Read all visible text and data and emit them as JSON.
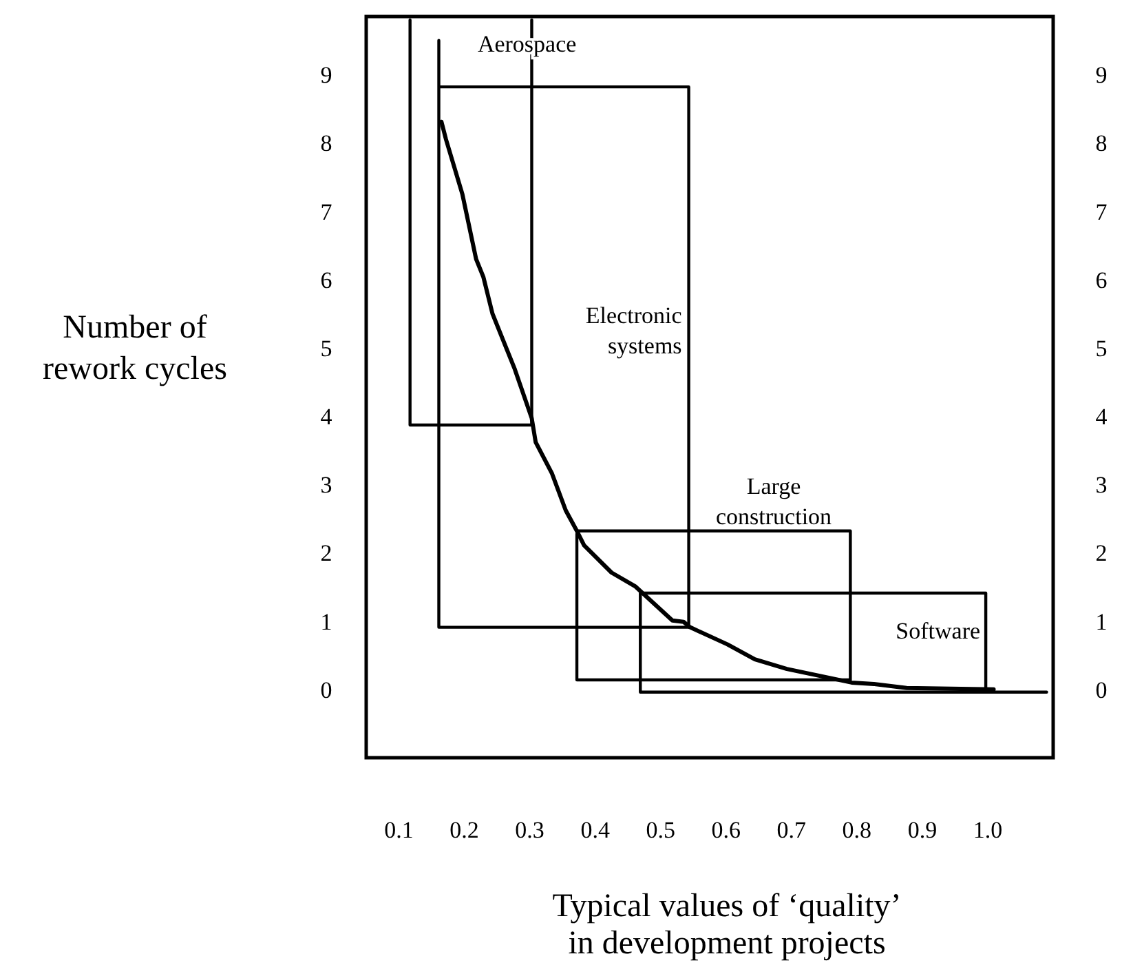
{
  "chart_data": {
    "type": "line",
    "xlabel": "Typical values of ‘quality’ in development projects",
    "ylabel": "Number of rework cycles",
    "xlim": [
      0.05,
      1.1
    ],
    "ylim": [
      -1,
      9.85
    ],
    "y2lim": [
      -1,
      9.85
    ],
    "xticks": [
      0.1,
      0.2,
      0.3,
      0.4,
      0.5,
      0.6,
      0.7,
      0.8,
      0.9,
      {
        "value": 1.0,
        "label": "1.0"
      }
    ],
    "yticks": [
      0,
      1,
      2,
      3,
      4,
      5,
      6,
      7,
      8,
      9
    ],
    "y2ticks": [
      0,
      1,
      2,
      3,
      4,
      5,
      6,
      7,
      8,
      9
    ],
    "grid": false,
    "marker": "none",
    "line_style": "solid",
    "series": [
      {
        "color": "#000000",
        "x": [
          0.165,
          0.172,
          0.197,
          0.218,
          0.229,
          0.243,
          0.277,
          0.303,
          0.309,
          0.334,
          0.355,
          0.372,
          0.383,
          0.425,
          0.461,
          0.518,
          0.535,
          0.545,
          0.602,
          0.644,
          0.693,
          0.792,
          0.826,
          0.876,
          1.009
        ],
        "values": [
          8.31,
          8.05,
          7.25,
          6.3,
          6.04,
          5.5,
          4.69,
          3.97,
          3.62,
          3.16,
          2.62,
          2.32,
          2.11,
          1.71,
          1.51,
          1.01,
          0.99,
          0.91,
          0.66,
          0.44,
          0.3,
          0.1,
          0.08,
          0.02,
          0
        ]
      },
      {
        "name": "Aerospace",
        "color": "#000000",
        "x": [
          0.117,
          0.117,
          0.303,
          0.303
        ],
        "values": [
          9.8,
          3.87,
          3.87,
          9.8
        ]
      },
      {
        "name": "Electronic systems",
        "color": "#000000",
        "x": [
          0.161,
          0.161,
          0.543,
          0.543,
          0.161
        ],
        "values": [
          9.5,
          0.91,
          0.91,
          8.82,
          8.82
        ]
      },
      {
        "name": "Large construction",
        "color": "#000000",
        "x": [
          0.372,
          0.79,
          0.79,
          0.372,
          0.372
        ],
        "values": [
          2.32,
          2.32,
          0.14,
          0.14,
          2.28
        ]
      },
      {
        "name": "Software",
        "color": "#000000",
        "x": [
          1.09,
          0.469,
          0.469,
          0.997,
          0.997
        ],
        "values": [
          -0.04,
          -0.04,
          1.41,
          1.41,
          0
        ]
      }
    ]
  }
}
